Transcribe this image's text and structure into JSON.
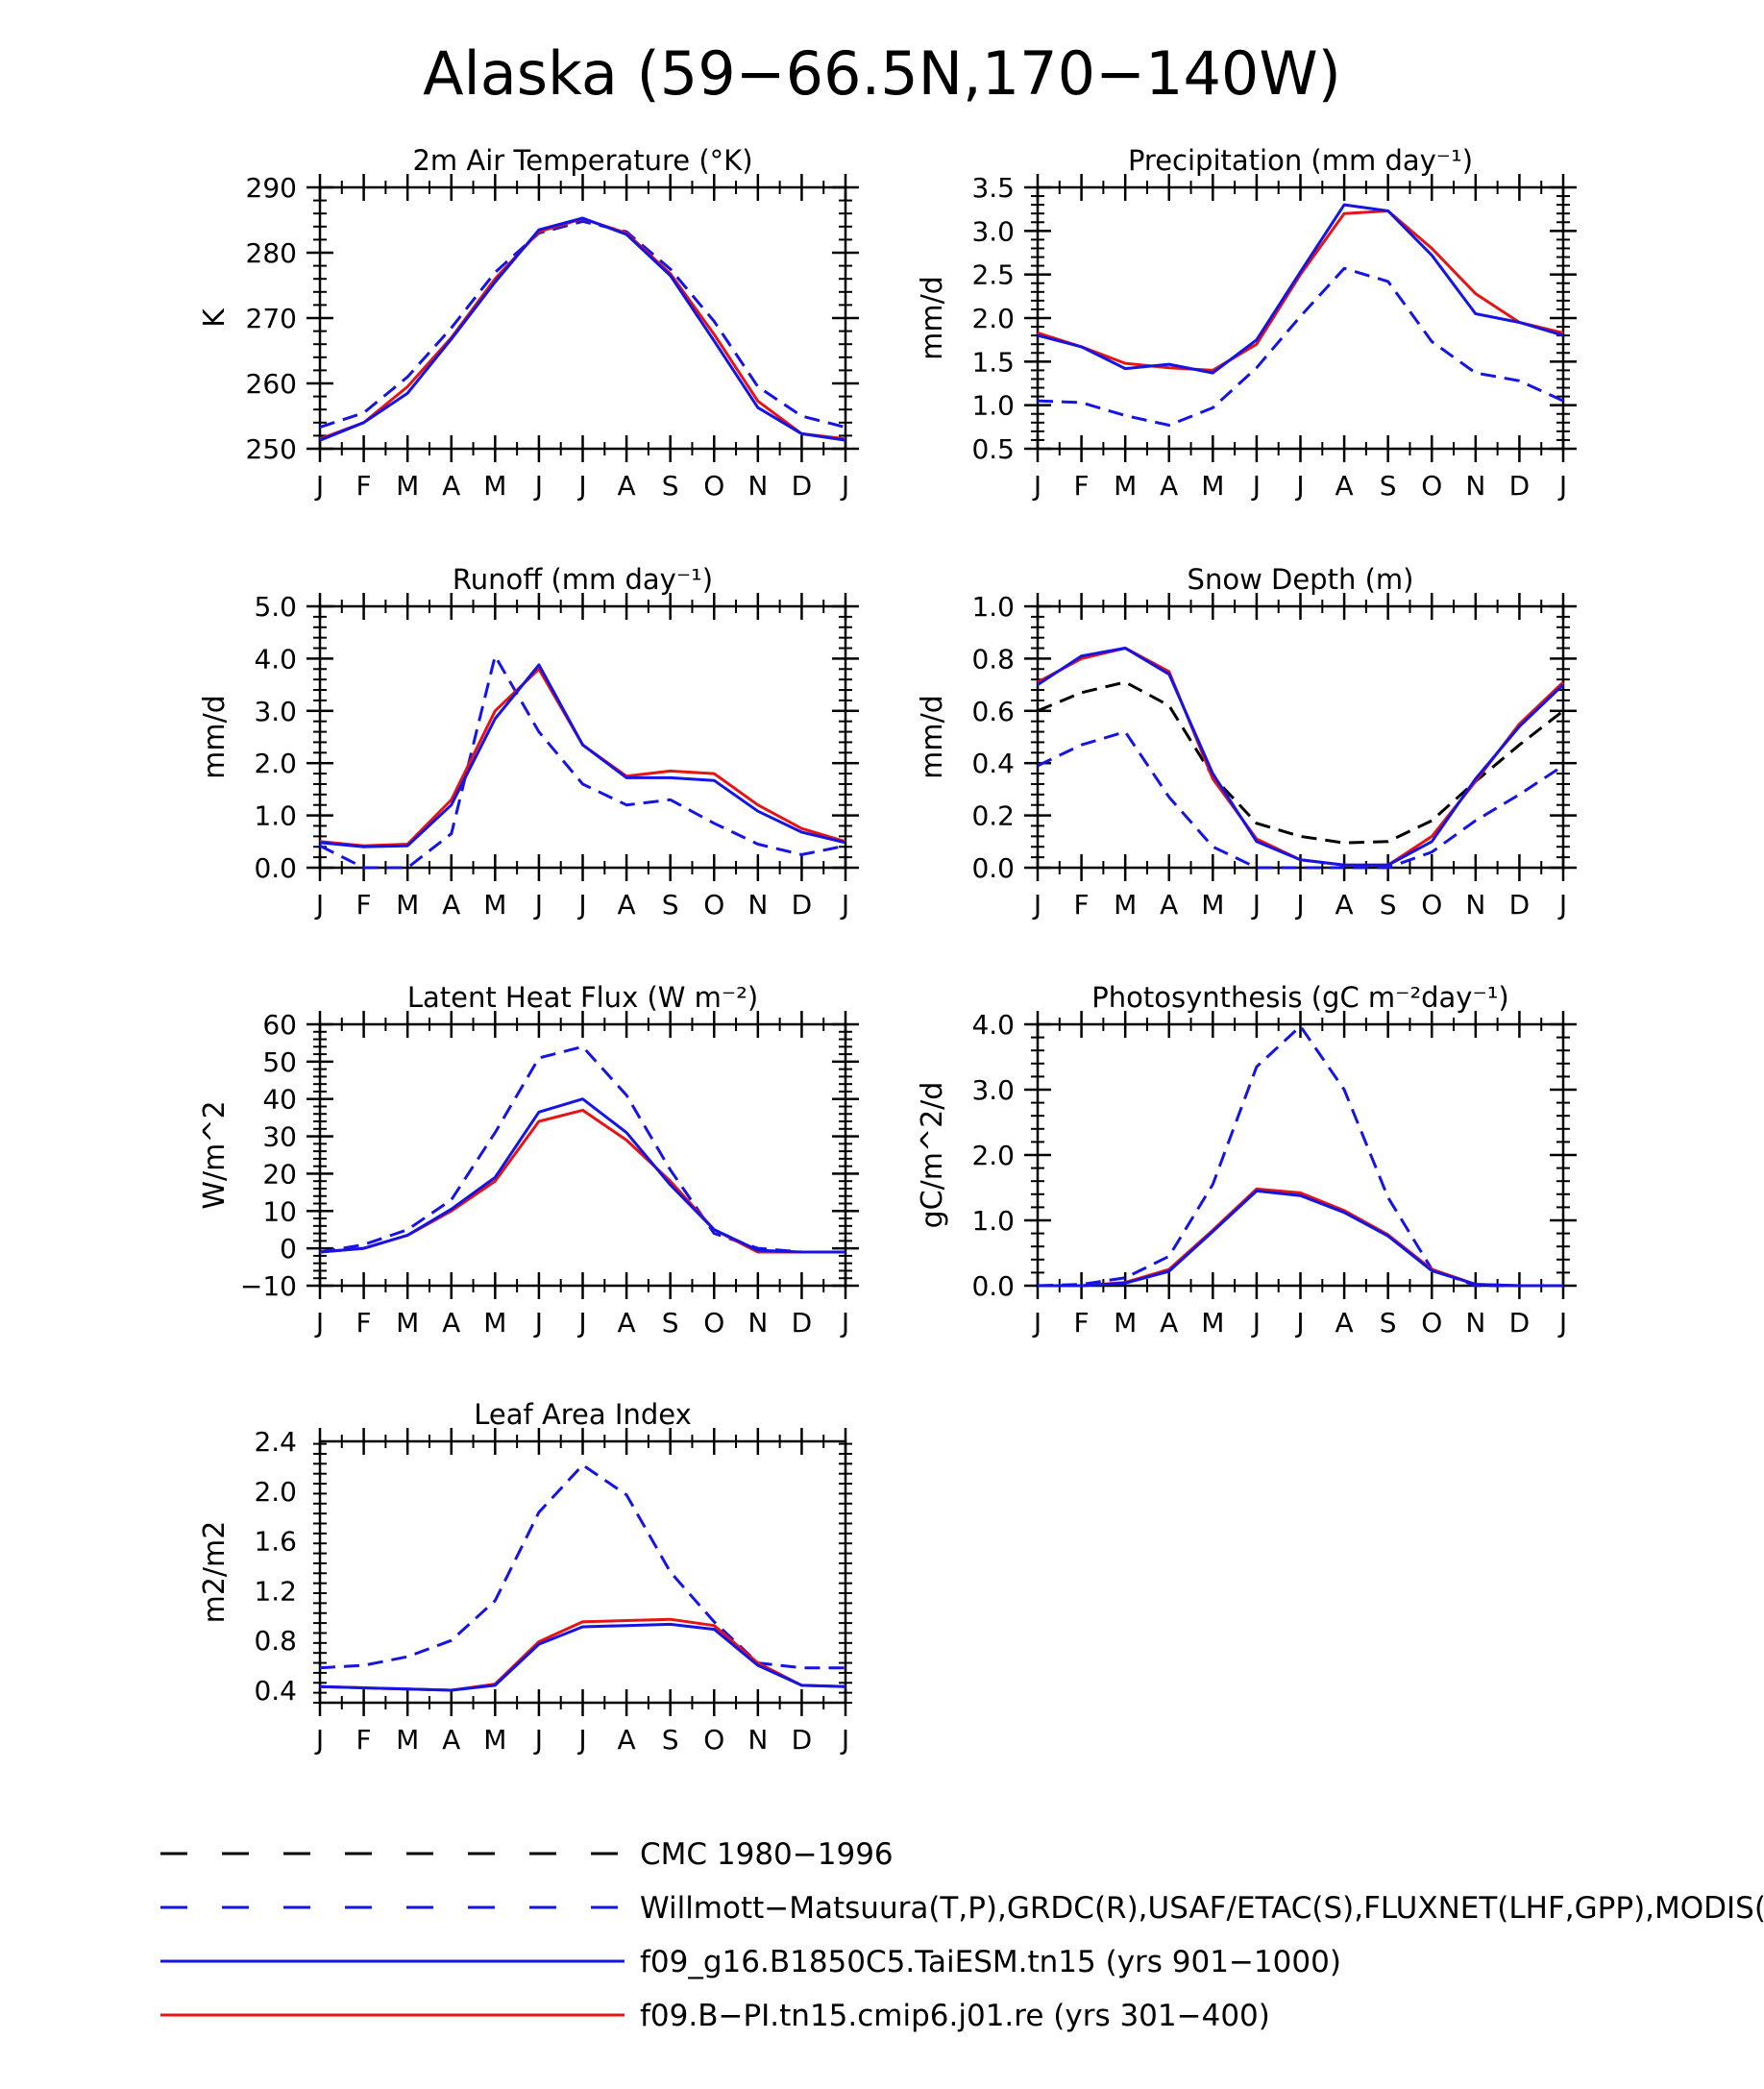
{
  "title": "Alaska (59−66.5N,170−140W)",
  "months": [
    "J",
    "F",
    "M",
    "A",
    "M",
    "J",
    "J",
    "A",
    "S",
    "O",
    "N",
    "D",
    "J"
  ],
  "colors": {
    "blue": "#1414e6",
    "red": "#e61414",
    "black": "#000000"
  },
  "legend": [
    {
      "label": "CMC 1980−1996",
      "color": "#000000",
      "style": "dashed"
    },
    {
      "label": "Willmott−Matsuura(T,P),GRDC(R),USAF/ETAC(S),FLUXNET(LHF,GPP),MODIS(LAI)",
      "color": "#1414e6",
      "style": "dashed"
    },
    {
      "label": "f09_g16.B1850C5.TaiESM.tn15 (yrs 901−1000)",
      "color": "#1414e6",
      "style": "solid"
    },
    {
      "label": "f09.B−PI.tn15.cmip6.j01.re (yrs 301−400)",
      "color": "#e61414",
      "style": "solid"
    }
  ],
  "chart_data": [
    {
      "type": "line",
      "title": "2m Air Temperature (°K)",
      "ylabel": "K",
      "ylim": [
        250,
        290
      ],
      "yticks": [
        250,
        260,
        270,
        280,
        290
      ],
      "ytick_labels": [
        "250",
        "260",
        "270",
        "280",
        "290"
      ],
      "x": [
        "J",
        "F",
        "M",
        "A",
        "M",
        "J",
        "J",
        "A",
        "S",
        "O",
        "N",
        "D",
        "J"
      ],
      "series": [
        {
          "color": "#1414e6",
          "style": "dashed",
          "values": [
            253.3,
            255.5,
            261.0,
            268.5,
            277.0,
            283.0,
            284.8,
            283.2,
            277.5,
            269.5,
            259.5,
            255.0,
            253.3
          ]
        },
        {
          "color": "#e61414",
          "style": "solid",
          "values": [
            251.5,
            254.0,
            259.5,
            267.0,
            276.0,
            283.2,
            285.2,
            283.0,
            276.8,
            267.5,
            257.3,
            252.3,
            251.5
          ]
        },
        {
          "color": "#1414e6",
          "style": "solid",
          "values": [
            251.3,
            254.0,
            258.5,
            266.8,
            275.5,
            283.5,
            285.3,
            282.8,
            276.5,
            266.5,
            256.3,
            252.3,
            251.3
          ]
        }
      ]
    },
    {
      "type": "line",
      "title": "Precipitation (mm day⁻¹)",
      "ylabel": "mm/d",
      "ylim": [
        0.5,
        3.5
      ],
      "yticks": [
        0.5,
        1.0,
        1.5,
        2.0,
        2.5,
        3.0,
        3.5
      ],
      "ytick_labels": [
        "0.5",
        "1.0",
        "1.5",
        "2.0",
        "2.5",
        "3.0",
        "3.5"
      ],
      "x": [
        "J",
        "F",
        "M",
        "A",
        "M",
        "J",
        "J",
        "A",
        "S",
        "O",
        "N",
        "D",
        "J"
      ],
      "series": [
        {
          "color": "#1414e6",
          "style": "dashed",
          "values": [
            1.05,
            1.03,
            0.88,
            0.77,
            0.97,
            1.43,
            2.02,
            2.57,
            2.42,
            1.73,
            1.37,
            1.28,
            1.05
          ]
        },
        {
          "color": "#e61414",
          "style": "solid",
          "values": [
            1.83,
            1.67,
            1.48,
            1.43,
            1.4,
            1.7,
            2.5,
            3.2,
            3.23,
            2.8,
            2.28,
            1.95,
            1.83
          ]
        },
        {
          "color": "#1414e6",
          "style": "solid",
          "values": [
            1.8,
            1.67,
            1.42,
            1.47,
            1.37,
            1.75,
            2.53,
            3.3,
            3.23,
            2.72,
            2.05,
            1.95,
            1.8
          ]
        }
      ]
    },
    {
      "type": "line",
      "title": "Runoff (mm day⁻¹)",
      "ylabel": "mm/d",
      "ylim": [
        0.0,
        5.0
      ],
      "yticks": [
        0.0,
        1.0,
        2.0,
        3.0,
        4.0,
        5.0
      ],
      "ytick_labels": [
        "0.0",
        "1.0",
        "2.0",
        "3.0",
        "4.0",
        "5.0"
      ],
      "x": [
        "J",
        "F",
        "M",
        "A",
        "M",
        "J",
        "J",
        "A",
        "S",
        "O",
        "N",
        "D",
        "J"
      ],
      "series": [
        {
          "color": "#1414e6",
          "style": "dashed",
          "values": [
            0.42,
            0.0,
            0.0,
            0.65,
            4.05,
            2.6,
            1.6,
            1.2,
            1.3,
            0.85,
            0.45,
            0.25,
            0.42
          ]
        },
        {
          "color": "#e61414",
          "style": "solid",
          "values": [
            0.5,
            0.42,
            0.45,
            1.3,
            3.0,
            3.8,
            2.35,
            1.75,
            1.85,
            1.8,
            1.2,
            0.75,
            0.5
          ]
        },
        {
          "color": "#1414e6",
          "style": "solid",
          "values": [
            0.48,
            0.4,
            0.42,
            1.2,
            2.85,
            3.88,
            2.35,
            1.72,
            1.72,
            1.67,
            1.08,
            0.68,
            0.48
          ]
        }
      ]
    },
    {
      "type": "line",
      "title": "Snow Depth (m)",
      "ylabel": "mm/d",
      "ylim": [
        0.0,
        1.0
      ],
      "yticks": [
        0.0,
        0.2,
        0.4,
        0.6,
        0.8,
        1.0
      ],
      "ytick_labels": [
        "0.0",
        "0.2",
        "0.4",
        "0.6",
        "0.8",
        "1.0"
      ],
      "x": [
        "J",
        "F",
        "M",
        "A",
        "M",
        "J",
        "J",
        "A",
        "S",
        "O",
        "N",
        "D",
        "J"
      ],
      "series": [
        {
          "color": "#000000",
          "style": "dashed",
          "values": [
            0.6,
            0.67,
            0.71,
            0.62,
            0.35,
            0.17,
            0.12,
            0.095,
            0.1,
            0.18,
            0.33,
            0.47,
            0.6
          ]
        },
        {
          "color": "#1414e6",
          "style": "dashed",
          "values": [
            0.39,
            0.47,
            0.52,
            0.27,
            0.08,
            0.0,
            0.0,
            0.0,
            0.0,
            0.06,
            0.18,
            0.28,
            0.39
          ]
        },
        {
          "color": "#e61414",
          "style": "solid",
          "values": [
            0.71,
            0.8,
            0.84,
            0.75,
            0.34,
            0.11,
            0.03,
            0.01,
            0.01,
            0.12,
            0.33,
            0.55,
            0.71
          ]
        },
        {
          "color": "#1414e6",
          "style": "solid",
          "values": [
            0.7,
            0.81,
            0.84,
            0.74,
            0.36,
            0.1,
            0.03,
            0.01,
            0.01,
            0.1,
            0.34,
            0.54,
            0.7
          ]
        }
      ]
    },
    {
      "type": "line",
      "title": "Latent Heat Flux (W m⁻²)",
      "ylabel": "W/m^2",
      "ylim": [
        -10,
        60
      ],
      "yticks": [
        -10,
        0,
        10,
        20,
        30,
        40,
        50,
        60
      ],
      "ytick_labels": [
        "−10",
        "0",
        "10",
        "20",
        "30",
        "40",
        "50",
        "60"
      ],
      "x": [
        "J",
        "F",
        "M",
        "A",
        "M",
        "J",
        "J",
        "A",
        "S",
        "O",
        "N",
        "D",
        "J"
      ],
      "series": [
        {
          "color": "#1414e6",
          "style": "dashed",
          "values": [
            -1,
            1,
            5,
            13,
            31,
            51,
            54,
            41,
            21,
            4,
            0,
            -1,
            -1
          ]
        },
        {
          "color": "#e61414",
          "style": "solid",
          "values": [
            -1,
            0,
            3.5,
            10,
            18,
            34,
            37,
            29,
            18,
            5,
            -1,
            -1,
            -1
          ]
        },
        {
          "color": "#1414e6",
          "style": "solid",
          "values": [
            -1,
            0,
            3.5,
            10.5,
            19,
            36.5,
            40,
            31,
            17,
            5,
            -0.5,
            -1,
            -1
          ]
        }
      ]
    },
    {
      "type": "line",
      "title": "Photosynthesis (gC m⁻²day⁻¹)",
      "ylabel": "gC/m^2/d",
      "ylim": [
        0.0,
        4.0
      ],
      "yticks": [
        0.0,
        1.0,
        2.0,
        3.0,
        4.0
      ],
      "ytick_labels": [
        "0.0",
        "1.0",
        "2.0",
        "3.0",
        "4.0"
      ],
      "x": [
        "J",
        "F",
        "M",
        "A",
        "M",
        "J",
        "J",
        "A",
        "S",
        "O",
        "N",
        "D",
        "J"
      ],
      "series": [
        {
          "color": "#1414e6",
          "style": "dashed",
          "values": [
            0.0,
            0.02,
            0.12,
            0.45,
            1.55,
            3.35,
            3.97,
            3.0,
            1.35,
            0.25,
            0.0,
            0.0,
            0.0
          ]
        },
        {
          "color": "#e61414",
          "style": "solid",
          "values": [
            0.0,
            0.0,
            0.05,
            0.25,
            0.85,
            1.48,
            1.42,
            1.15,
            0.78,
            0.25,
            0.02,
            0.0,
            0.0
          ]
        },
        {
          "color": "#1414e6",
          "style": "solid",
          "values": [
            0.0,
            0.0,
            0.04,
            0.22,
            0.83,
            1.45,
            1.38,
            1.12,
            0.76,
            0.23,
            0.02,
            0.0,
            0.0
          ]
        }
      ]
    },
    {
      "type": "line",
      "title": "Leaf Area Index",
      "ylabel": "m2/m2",
      "ylim": [
        0.3,
        2.4
      ],
      "yticks": [
        0.4,
        0.8,
        1.2,
        1.6,
        2.0,
        2.4
      ],
      "ytick_labels": [
        "0.4",
        "0.8",
        "1.2",
        "1.6",
        "2.0",
        "2.4"
      ],
      "x": [
        "J",
        "F",
        "M",
        "A",
        "M",
        "J",
        "J",
        "A",
        "S",
        "O",
        "N",
        "D",
        "J"
      ],
      "series": [
        {
          "color": "#1414e6",
          "style": "dashed",
          "values": [
            0.58,
            0.6,
            0.67,
            0.8,
            1.12,
            1.83,
            2.21,
            1.97,
            1.35,
            0.95,
            0.62,
            0.58,
            0.58
          ]
        },
        {
          "color": "#e61414",
          "style": "solid",
          "values": [
            0.43,
            0.42,
            0.41,
            0.4,
            0.45,
            0.79,
            0.95,
            0.96,
            0.97,
            0.92,
            0.62,
            0.44,
            0.43
          ]
        },
        {
          "color": "#1414e6",
          "style": "solid",
          "values": [
            0.43,
            0.42,
            0.41,
            0.4,
            0.44,
            0.77,
            0.91,
            0.92,
            0.93,
            0.89,
            0.6,
            0.44,
            0.43
          ]
        }
      ]
    }
  ]
}
